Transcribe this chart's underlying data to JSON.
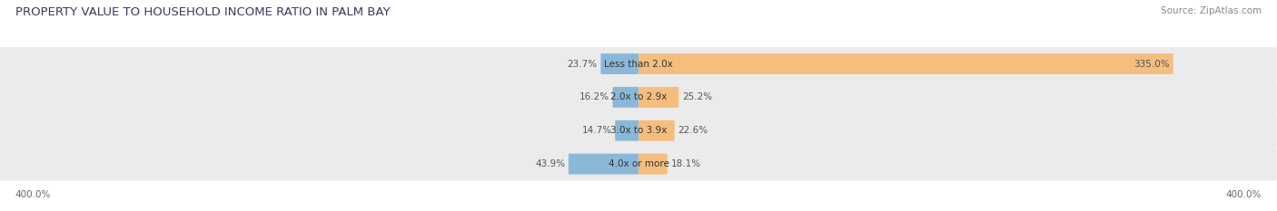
{
  "title": "PROPERTY VALUE TO HOUSEHOLD INCOME RATIO IN PALM BAY",
  "source": "Source: ZipAtlas.com",
  "categories": [
    "Less than 2.0x",
    "2.0x to 2.9x",
    "3.0x to 3.9x",
    "4.0x or more"
  ],
  "without_mortgage": [
    23.7,
    16.2,
    14.7,
    43.9
  ],
  "with_mortgage": [
    335.0,
    25.2,
    22.6,
    18.1
  ],
  "color_without": "#8BB8D8",
  "color_with": "#F5BE7E",
  "axis_limit": 400.0,
  "bg_bar": "#EBEBEB",
  "bg_figure": "#FFFFFF",
  "title_fontsize": 9.5,
  "source_fontsize": 7.5,
  "label_fontsize": 7.5,
  "tick_fontsize": 7.5,
  "legend_fontsize": 8
}
